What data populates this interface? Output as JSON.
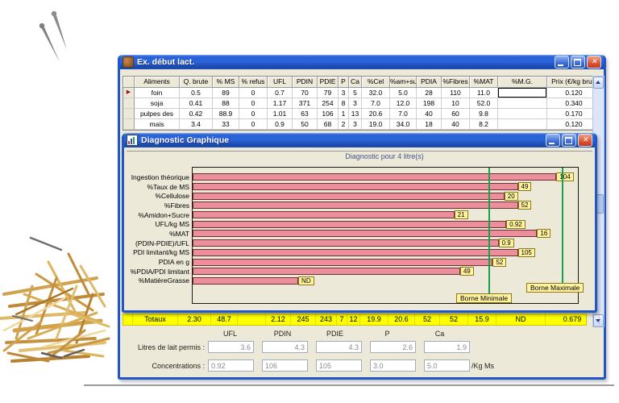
{
  "main_window": {
    "title": "Ex. début lact.",
    "table": {
      "columns": [
        "Aliments",
        "Q. brute",
        "% MS",
        "% refus",
        "UFL",
        "PDIN",
        "PDIE",
        "P",
        "Ca",
        "%Cel",
        "%am+su",
        "PDIA",
        "%Fibres",
        "%MAT",
        "%M.G.",
        "Prix (€/kg brut)"
      ],
      "rows": [
        {
          "selected": true,
          "cells": [
            "foin",
            "0.5",
            "89",
            "0",
            "0.7",
            "70",
            "79",
            "3",
            "5",
            "32.0",
            "5.0",
            "28",
            "110",
            "11.0",
            "",
            "0.120"
          ]
        },
        {
          "selected": false,
          "cells": [
            "soja",
            "0.41",
            "88",
            "0",
            "1.17",
            "371",
            "254",
            "8",
            "3",
            "7.0",
            "12.0",
            "198",
            "10",
            "52.0",
            "",
            "0.340"
          ]
        },
        {
          "selected": false,
          "cells": [
            "pulpes des",
            "0.42",
            "88.9",
            "0",
            "1.01",
            "63",
            "106",
            "1",
            "13",
            "20.6",
            "7.0",
            "40",
            "60",
            "9.8",
            "",
            "0.170"
          ]
        },
        {
          "selected": false,
          "cells": [
            "mais",
            "3.4",
            "33",
            "0",
            "0.9",
            "50",
            "68",
            "2",
            "3",
            "19.0",
            "34.0",
            "18",
            "40",
            "8.2",
            "",
            "0.120"
          ]
        }
      ]
    },
    "totals": {
      "label": "Totaux",
      "values": [
        "2.30",
        "48.7",
        "",
        "2.12",
        "245",
        "243",
        "7",
        "12",
        "19.9",
        "20.6",
        "52",
        "52",
        "15.9",
        "ND",
        "0.679"
      ]
    },
    "bottom_panel": {
      "col_headers": [
        "UFL",
        "PDIN",
        "PDIE",
        "P",
        "Ca"
      ],
      "rows": [
        {
          "label": "Litres de lait permis :",
          "values": [
            "3.6",
            "4.3",
            "4.3",
            "2.6",
            "1.9"
          ]
        },
        {
          "label": "Concentrations :",
          "values": [
            "0.92",
            "106",
            "105",
            "3.0",
            "5.0"
          ]
        }
      ],
      "unit": "/Kg Ms"
    }
  },
  "dialog": {
    "title": "Diagnostic Graphique"
  },
  "chart_data": {
    "type": "bar",
    "orientation": "horizontal",
    "title": "Diagnostic pour 4 litre(s)",
    "categories": [
      "Ingestion théorique",
      "%Taux de MS",
      "%Cellulose",
      "%Fibres",
      "%Amidon+Sucre",
      "UFL/kg MS",
      "%MAT",
      "(PDIN-PDIE)/UFL",
      "PDI limitant/kg MS",
      "PDIA en g",
      "%PDIA/PDI limitant",
      "%MatièreGrasse"
    ],
    "value_labels": [
      "104",
      "49",
      "20",
      "52",
      "21",
      "0.92",
      "16",
      "0.9",
      "105",
      "52",
      "49",
      "ND"
    ],
    "values": [
      104,
      49,
      20,
      52,
      21,
      0.92,
      16,
      0.9,
      105,
      52,
      49,
      null
    ],
    "bar_length_pct": [
      94,
      84,
      80.5,
      84,
      67.5,
      81,
      89,
      79,
      84,
      77.5,
      69,
      27
    ],
    "reference_lines": [
      {
        "name": "borne-minimale",
        "label": "Borne Minimale",
        "pct": 77
      },
      {
        "name": "borne-maximale",
        "label": "Borne Maximale",
        "pct": 96
      }
    ],
    "bar_color": "#ED8F9A",
    "label_bg": "#FFF3A0",
    "line_color": "#18A04A",
    "plot_bg": "#ECE9D8",
    "legend": "none",
    "grid": false
  },
  "colors": {
    "titlebar_blue": "#2A62D8",
    "client_bg": "#ECE9D8",
    "totals_bg": "#FFFF00",
    "close_red": "#DD5533"
  }
}
